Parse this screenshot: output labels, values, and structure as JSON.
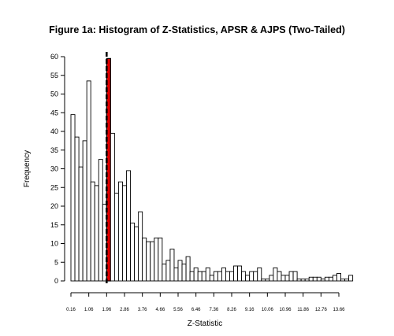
{
  "chart_data": {
    "type": "bar",
    "title": "Figure 1a: Histogram of Z-Statistics, APSR & AJPS (Two-Tailed)",
    "xlabel": "Z-Statistic",
    "ylabel": "Frequency",
    "ylim": [
      0,
      60
    ],
    "yticks": [
      0,
      5,
      10,
      15,
      20,
      25,
      30,
      35,
      40,
      45,
      50,
      55,
      60
    ],
    "xticks": [
      "0.16",
      "1.06",
      "1.96",
      "2.86",
      "3.76",
      "4.66",
      "5.56",
      "6.46",
      "7.36",
      "8.26",
      "9.16",
      "10.06",
      "10.96",
      "11.86",
      "12.76",
      "13.66"
    ],
    "bin_width": 0.2,
    "bin_start": 0.16,
    "critical_value": 1.96,
    "highlight_bin_start": 1.96,
    "colors": {
      "bars": "#ffffff",
      "highlight": "#e00000",
      "outline": "#000000"
    },
    "values": [
      44.5,
      38.5,
      30.5,
      37.5,
      53.5,
      26.5,
      25.5,
      32.5,
      20.5,
      59.5,
      39.5,
      23.5,
      26.5,
      25.5,
      29.5,
      15.5,
      14.5,
      18.5,
      11.5,
      10.5,
      10.5,
      11.5,
      11.5,
      4.5,
      5.5,
      8.5,
      3.5,
      5.5,
      4.5,
      6.5,
      2.5,
      3.5,
      2.5,
      2.5,
      3.5,
      1.5,
      2.5,
      2.5,
      3.5,
      2.5,
      2.5,
      4.0,
      4.0,
      2.5,
      1.5,
      2.5,
      2.5,
      3.5,
      0.5,
      0.5,
      1.5,
      3.5,
      2.5,
      1.5,
      1.5,
      2.5,
      2.5,
      0.5,
      0.5,
      0.5,
      1.0,
      1.0,
      1.0,
      0.5,
      1.0,
      1.0,
      1.5,
      2.0,
      0.5,
      0.5,
      1.5
    ]
  }
}
